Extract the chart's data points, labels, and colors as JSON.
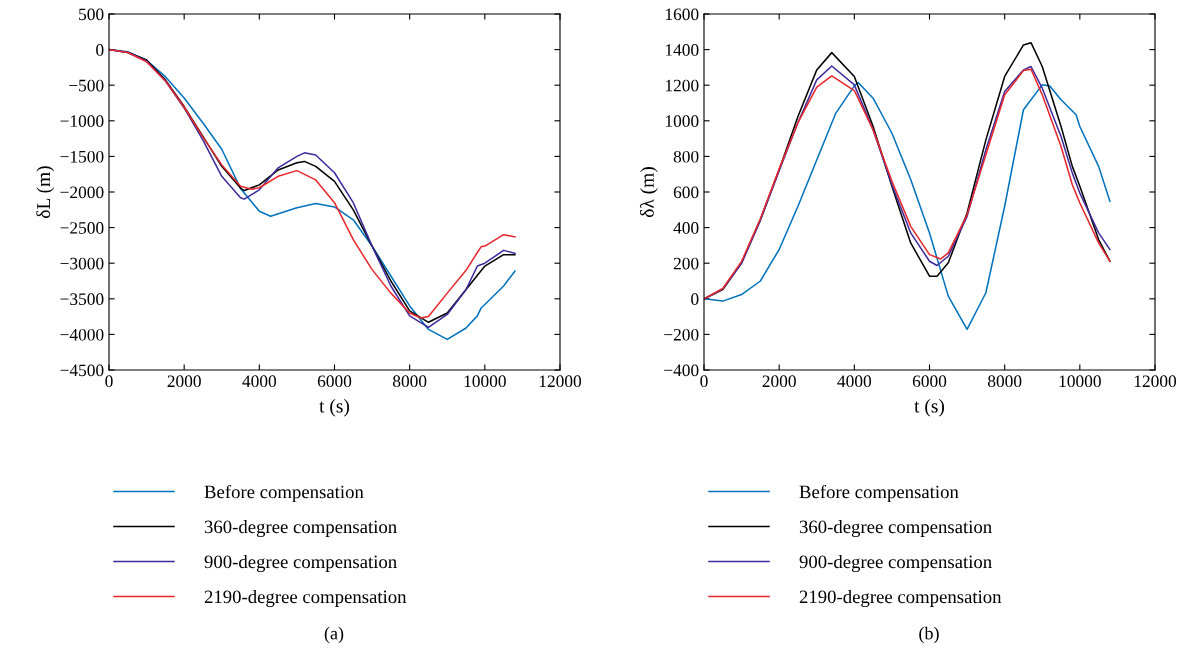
{
  "chart_data": [
    {
      "type": "line",
      "xlabel": "t (s)",
      "ylabel": "δL (m)",
      "annotations": [
        "(a)"
      ],
      "legend": "bottom",
      "grid": false,
      "xlim": [
        0,
        12000
      ],
      "xticks": [
        0,
        2000,
        4000,
        6000,
        8000,
        10000,
        12000
      ],
      "ylim": [
        -4500,
        500
      ],
      "yticks": [
        500,
        0,
        {
          "value": -500,
          "label": "−500"
        },
        {
          "value": -1000,
          "label": "−1000"
        },
        {
          "value": -1500,
          "label": "−1500"
        },
        {
          "value": -2000,
          "label": "−2000"
        },
        {
          "value": -2500,
          "label": "−2500"
        },
        {
          "value": -3000,
          "label": "−3000"
        },
        {
          "value": -3500,
          "label": "−3500"
        },
        {
          "value": -4000,
          "label": "−4000"
        },
        {
          "value": -4500,
          "label": "−4500"
        }
      ],
      "series": [
        {
          "name": "Before compensation",
          "color": "#0072bd",
          "x": [
            0,
            500,
            1000,
            1500,
            2000,
            2500,
            3000,
            3500,
            4000,
            4300,
            5000,
            5500,
            6000,
            6500,
            7000,
            7500,
            8000,
            8500,
            9000,
            9500,
            9800,
            9900,
            10000,
            10500,
            10800
          ],
          "values": [
            0,
            -30,
            -150,
            -380,
            -680,
            -1030,
            -1400,
            -1950,
            -2270,
            -2340,
            -2220,
            -2160,
            -2210,
            -2390,
            -2760,
            -3180,
            -3600,
            -3930,
            -4070,
            -3910,
            -3740,
            -3630,
            -3580,
            -3320,
            -3110
          ]
        },
        {
          "name": "360-degree compensation",
          "color": "#000000",
          "x": [
            0,
            500,
            1000,
            1500,
            2000,
            2500,
            3000,
            3500,
            3600,
            4000,
            4500,
            5000,
            5200,
            5500,
            6000,
            6500,
            7000,
            7500,
            8000,
            8500,
            9000,
            9500,
            10000,
            10500,
            10800
          ],
          "values": [
            0,
            -40,
            -145,
            -425,
            -800,
            -1220,
            -1640,
            -1945,
            -1980,
            -1900,
            -1690,
            -1590,
            -1570,
            -1640,
            -1850,
            -2250,
            -2760,
            -3250,
            -3670,
            -3830,
            -3700,
            -3370,
            -3040,
            -2880,
            -2880
          ]
        },
        {
          "name": "900-degree compensation",
          "color": "#3f2a9c",
          "x": [
            0,
            500,
            1000,
            1500,
            2000,
            2500,
            3000,
            3500,
            3600,
            4000,
            4500,
            5000,
            5200,
            5500,
            6000,
            6500,
            7000,
            7500,
            8000,
            8500,
            9000,
            9500,
            9800,
            10000,
            10500,
            10800
          ],
          "values": [
            0,
            -40,
            -160,
            -440,
            -820,
            -1270,
            -1780,
            -2080,
            -2100,
            -1970,
            -1660,
            -1500,
            -1450,
            -1480,
            -1730,
            -2150,
            -2760,
            -3320,
            -3740,
            -3900,
            -3720,
            -3370,
            -3040,
            -3000,
            -2820,
            -2860
          ]
        },
        {
          "name": "2190-degree compensation",
          "color": "#e8262b",
          "x": [
            0,
            500,
            1000,
            1500,
            2000,
            2500,
            3000,
            3500,
            3800,
            4000,
            4500,
            5000,
            5500,
            6000,
            6500,
            7000,
            7500,
            8000,
            8300,
            8500,
            9000,
            9500,
            9800,
            9900,
            10000,
            10500,
            10800
          ],
          "values": [
            0,
            -40,
            -170,
            -440,
            -810,
            -1230,
            -1620,
            -1920,
            -1960,
            -1940,
            -1780,
            -1700,
            -1830,
            -2150,
            -2670,
            -3090,
            -3420,
            -3700,
            -3770,
            -3750,
            -3420,
            -3100,
            -2850,
            -2770,
            -2760,
            -2600,
            -2630
          ]
        }
      ]
    },
    {
      "type": "line",
      "xlabel": "t (s)",
      "ylabel": "δλ (m)",
      "annotations": [
        "(b)"
      ],
      "legend": "bottom",
      "grid": false,
      "xlim": [
        0,
        12000
      ],
      "xticks": [
        0,
        2000,
        4000,
        6000,
        8000,
        10000,
        12000
      ],
      "ylim": [
        -400,
        1600
      ],
      "yticks": [
        1600,
        1400,
        1200,
        1000,
        800,
        600,
        400,
        200,
        0,
        {
          "value": -200,
          "label": "−200"
        },
        {
          "value": -400,
          "label": "−400"
        }
      ],
      "series": [
        {
          "name": "Before compensation",
          "color": "#0072bd",
          "x": [
            0,
            500,
            1000,
            1500,
            2000,
            2500,
            3000,
            3500,
            4000,
            4100,
            4500,
            5000,
            5500,
            6000,
            6500,
            7000,
            7500,
            8000,
            8500,
            9000,
            9200,
            9500,
            9900,
            10000,
            10500,
            10800
          ],
          "values": [
            0,
            -13,
            24,
            100,
            277,
            520,
            780,
            1040,
            1196,
            1215,
            1127,
            930,
            670,
            370,
            15,
            -172,
            34,
            520,
            1062,
            1202,
            1196,
            1118,
            1034,
            968,
            744,
            548
          ]
        },
        {
          "name": "360-degree compensation",
          "color": "#000000",
          "x": [
            0,
            500,
            1000,
            1500,
            2000,
            2500,
            3000,
            3400,
            4000,
            4500,
            5000,
            5500,
            6000,
            6200,
            6500,
            7000,
            7500,
            8000,
            8500,
            8700,
            9000,
            9500,
            9800,
            10000,
            10500,
            10800
          ],
          "values": [
            0,
            52,
            202,
            445,
            725,
            1024,
            1286,
            1383,
            1249,
            968,
            632,
            314,
            127,
            127,
            202,
            482,
            893,
            1249,
            1426,
            1439,
            1305,
            968,
            744,
            632,
            333,
            211
          ]
        },
        {
          "name": "900-degree compensation",
          "color": "#3f2a9c",
          "x": [
            0,
            500,
            1000,
            1500,
            2000,
            2500,
            3000,
            3400,
            4000,
            4500,
            5000,
            5500,
            6000,
            6200,
            6500,
            7000,
            7500,
            8000,
            8500,
            8700,
            9000,
            9500,
            9800,
            10000,
            10500,
            10800
          ],
          "values": [
            0,
            55,
            200,
            440,
            720,
            990,
            1230,
            1308,
            1202,
            949,
            641,
            370,
            211,
            187,
            239,
            463,
            837,
            1164,
            1286,
            1305,
            1183,
            912,
            706,
            594,
            370,
            277
          ]
        },
        {
          "name": "2190-degree compensation",
          "color": "#e8262b",
          "x": [
            0,
            500,
            1000,
            1500,
            2000,
            2500,
            3000,
            3400,
            4000,
            4500,
            5000,
            5500,
            6000,
            6300,
            6500,
            7000,
            7500,
            8000,
            8500,
            8700,
            9000,
            9500,
            9800,
            10000,
            10500,
            10800
          ],
          "values": [
            0,
            58,
            210,
            450,
            730,
            990,
            1189,
            1252,
            1170,
            949,
            660,
            407,
            248,
            224,
            258,
            473,
            809,
            1146,
            1282,
            1290,
            1146,
            856,
            641,
            538,
            314,
            211
          ]
        }
      ]
    }
  ]
}
